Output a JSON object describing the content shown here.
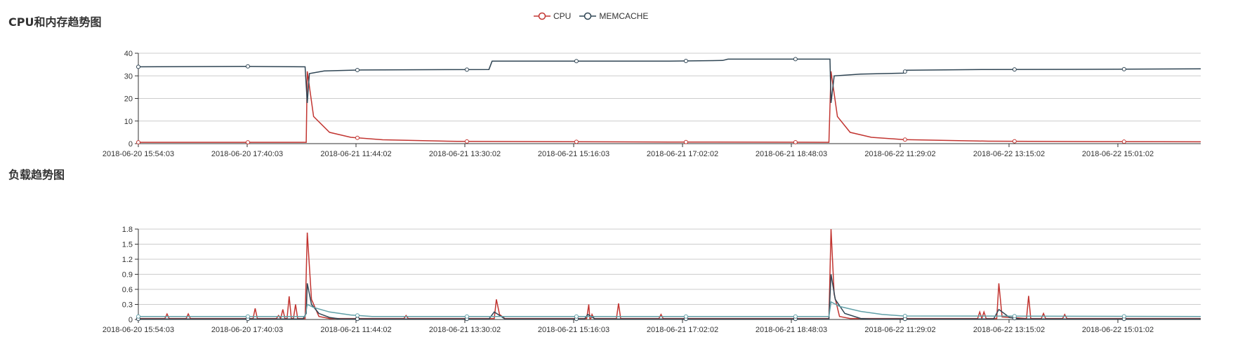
{
  "page": {
    "cpu_mem_title": "CPU和内存趋势图",
    "load_title": "负载趋势图"
  },
  "legend": {
    "items": [
      {
        "label": "CPU",
        "color": "#c23531"
      },
      {
        "label": "MEMCACHE",
        "color": "#2f4554"
      }
    ]
  },
  "chart_data": [
    {
      "type": "line",
      "title": "CPU和内存趋势图",
      "x_tick_labels": [
        "2018-06-20 15:54:03",
        "2018-06-20 17:40:03",
        "2018-06-21 11:44:02",
        "2018-06-21 13:30:02",
        "2018-06-21 15:16:03",
        "2018-06-21 17:02:02",
        "2018-06-21 18:48:03",
        "2018-06-22 11:29:02",
        "2018-06-22 13:15:02",
        "2018-06-22 15:01:02"
      ],
      "y_ticks": [
        "0",
        "10",
        "20",
        "30",
        "40"
      ],
      "ylim": [
        0,
        40
      ],
      "grid": true,
      "legend_position": "top-center",
      "series": [
        {
          "name": "CPU",
          "color": "#c23531",
          "points": [
            [
              0,
              0.6
            ],
            [
              0.158,
              0.6
            ],
            [
              0.159,
              32
            ],
            [
              0.165,
              12
            ],
            [
              0.18,
              5
            ],
            [
              0.2,
              2.8
            ],
            [
              0.23,
              1.7
            ],
            [
              0.3,
              1.0
            ],
            [
              0.5,
              0.7
            ],
            [
              0.65,
              0.6
            ],
            [
              0.652,
              32
            ],
            [
              0.658,
              12
            ],
            [
              0.67,
              5
            ],
            [
              0.69,
              2.8
            ],
            [
              0.72,
              1.8
            ],
            [
              0.8,
              1.1
            ],
            [
              0.9,
              0.9
            ],
            [
              1.0,
              0.8
            ]
          ]
        },
        {
          "name": "MEMCACHE",
          "color": "#2f4554",
          "points": [
            [
              0,
              34
            ],
            [
              0.1,
              34.2
            ],
            [
              0.157,
              34
            ],
            [
              0.159,
              18
            ],
            [
              0.161,
              31
            ],
            [
              0.175,
              32.2
            ],
            [
              0.21,
              32.6
            ],
            [
              0.33,
              32.8
            ],
            [
              0.333,
              36.5
            ],
            [
              0.5,
              36.5
            ],
            [
              0.55,
              36.8
            ],
            [
              0.555,
              37.4
            ],
            [
              0.651,
              37.4
            ],
            [
              0.652,
              18
            ],
            [
              0.655,
              30
            ],
            [
              0.68,
              30.8
            ],
            [
              0.72,
              31.2
            ],
            [
              0.723,
              32.5
            ],
            [
              0.8,
              32.8
            ],
            [
              0.9,
              32.9
            ],
            [
              1.0,
              33.1
            ]
          ]
        }
      ]
    },
    {
      "type": "line",
      "title": "负载趋势图",
      "x_tick_labels": [
        "2018-06-20 15:54:03",
        "2018-06-20 17:40:03",
        "2018-06-21 11:44:02",
        "2018-06-21 13:30:02",
        "2018-06-21 15:16:03",
        "2018-06-21 17:02:02",
        "2018-06-21 18:48:03",
        "2018-06-22 11:29:02",
        "2018-06-22 13:15:02",
        "2018-06-22 15:01:02"
      ],
      "y_ticks": [
        "0",
        "0.3",
        "0.6",
        "0.9",
        "1.2",
        "1.5",
        "1.8"
      ],
      "ylim": [
        0,
        1.8
      ],
      "grid": true,
      "series": [
        {
          "color": "#c23531",
          "points": [
            [
              0,
              0.02
            ],
            [
              0.025,
              0.02
            ],
            [
              0.027,
              0.11
            ],
            [
              0.029,
              0.02
            ],
            [
              0.045,
              0.02
            ],
            [
              0.047,
              0.11
            ],
            [
              0.049,
              0.02
            ],
            [
              0.108,
              0.02
            ],
            [
              0.11,
              0.22
            ],
            [
              0.112,
              0.02
            ],
            [
              0.13,
              0.02
            ],
            [
              0.132,
              0.08
            ],
            [
              0.134,
              0.02
            ],
            [
              0.136,
              0.2
            ],
            [
              0.138,
              0.02
            ],
            [
              0.14,
              0.02
            ],
            [
              0.142,
              0.46
            ],
            [
              0.144,
              0.02
            ],
            [
              0.146,
              0.02
            ],
            [
              0.148,
              0.3
            ],
            [
              0.15,
              0.02
            ],
            [
              0.157,
              0.02
            ],
            [
              0.159,
              1.73
            ],
            [
              0.163,
              0.4
            ],
            [
              0.17,
              0.06
            ],
            [
              0.18,
              0.02
            ],
            [
              0.25,
              0.02
            ],
            [
              0.252,
              0.08
            ],
            [
              0.254,
              0.02
            ],
            [
              0.335,
              0.02
            ],
            [
              0.337,
              0.4
            ],
            [
              0.34,
              0.1
            ],
            [
              0.345,
              0.02
            ],
            [
              0.425,
              0.02
            ],
            [
              0.427,
              0.1
            ],
            [
              0.429,
              0.02
            ],
            [
              0.422,
              0.02
            ],
            [
              0.424,
              0.3
            ],
            [
              0.426,
              0.02
            ],
            [
              0.45,
              0.02
            ],
            [
              0.452,
              0.32
            ],
            [
              0.454,
              0.02
            ],
            [
              0.49,
              0.02
            ],
            [
              0.492,
              0.1
            ],
            [
              0.494,
              0.02
            ],
            [
              0.6,
              0.02
            ],
            [
              0.65,
              0.02
            ],
            [
              0.652,
              1.8
            ],
            [
              0.655,
              0.5
            ],
            [
              0.66,
              0.06
            ],
            [
              0.67,
              0.02
            ],
            [
              0.79,
              0.02
            ],
            [
              0.792,
              0.15
            ],
            [
              0.794,
              0.02
            ],
            [
              0.796,
              0.15
            ],
            [
              0.798,
              0.02
            ],
            [
              0.808,
              0.02
            ],
            [
              0.81,
              0.72
            ],
            [
              0.813,
              0.05
            ],
            [
              0.836,
              0.02
            ],
            [
              0.838,
              0.47
            ],
            [
              0.84,
              0.02
            ],
            [
              0.85,
              0.02
            ],
            [
              0.852,
              0.12
            ],
            [
              0.854,
              0.02
            ],
            [
              0.87,
              0.02
            ],
            [
              0.872,
              0.1
            ],
            [
              0.874,
              0.02
            ],
            [
              1.0,
              0.02
            ]
          ]
        },
        {
          "color": "#2f4554",
          "points": [
            [
              0,
              0.01
            ],
            [
              0.155,
              0.01
            ],
            [
              0.158,
              0.12
            ],
            [
              0.159,
              0.72
            ],
            [
              0.163,
              0.3
            ],
            [
              0.17,
              0.12
            ],
            [
              0.18,
              0.04
            ],
            [
              0.19,
              0.01
            ],
            [
              0.33,
              0.01
            ],
            [
              0.335,
              0.15
            ],
            [
              0.345,
              0.01
            ],
            [
              0.42,
              0.01
            ],
            [
              0.423,
              0.1
            ],
            [
              0.43,
              0.01
            ],
            [
              0.65,
              0.01
            ],
            [
              0.652,
              0.9
            ],
            [
              0.656,
              0.4
            ],
            [
              0.665,
              0.12
            ],
            [
              0.68,
              0.02
            ],
            [
              0.69,
              0.01
            ],
            [
              0.805,
              0.01
            ],
            [
              0.81,
              0.2
            ],
            [
              0.82,
              0.04
            ],
            [
              0.83,
              0.01
            ],
            [
              1.0,
              0.01
            ]
          ]
        },
        {
          "color": "#61a0a8",
          "points": [
            [
              0,
              0.06
            ],
            [
              0.157,
              0.06
            ],
            [
              0.159,
              0.3
            ],
            [
              0.165,
              0.24
            ],
            [
              0.18,
              0.15
            ],
            [
              0.2,
              0.09
            ],
            [
              0.22,
              0.06
            ],
            [
              0.65,
              0.06
            ],
            [
              0.652,
              0.35
            ],
            [
              0.66,
              0.26
            ],
            [
              0.68,
              0.16
            ],
            [
              0.7,
              0.1
            ],
            [
              0.72,
              0.07
            ],
            [
              1.0,
              0.06
            ]
          ]
        }
      ]
    }
  ]
}
